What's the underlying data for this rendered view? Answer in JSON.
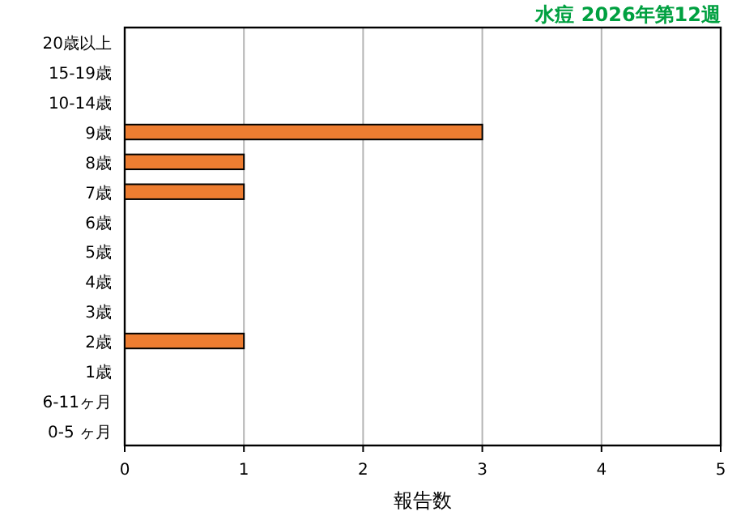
{
  "chart_data": {
    "type": "bar",
    "orientation": "horizontal",
    "title": "水痘 2026年第12週",
    "xlabel": "報告数",
    "categories": [
      "20歳以上",
      "15-19歳",
      "10-14歳",
      "9歳",
      "8歳",
      "7歳",
      "6歳",
      "5歳",
      "4歳",
      "3歳",
      "2歳",
      "1歳",
      "6-11ヶ月",
      "0-5 ヶ月"
    ],
    "values": [
      0,
      0,
      0,
      3,
      1,
      1,
      0,
      0,
      0,
      0,
      1,
      0,
      0,
      0
    ],
    "color": "#ed7d31",
    "xlim": [
      0,
      5
    ],
    "xticks": [
      0,
      1,
      2,
      3,
      4,
      5
    ],
    "grid": "x"
  }
}
